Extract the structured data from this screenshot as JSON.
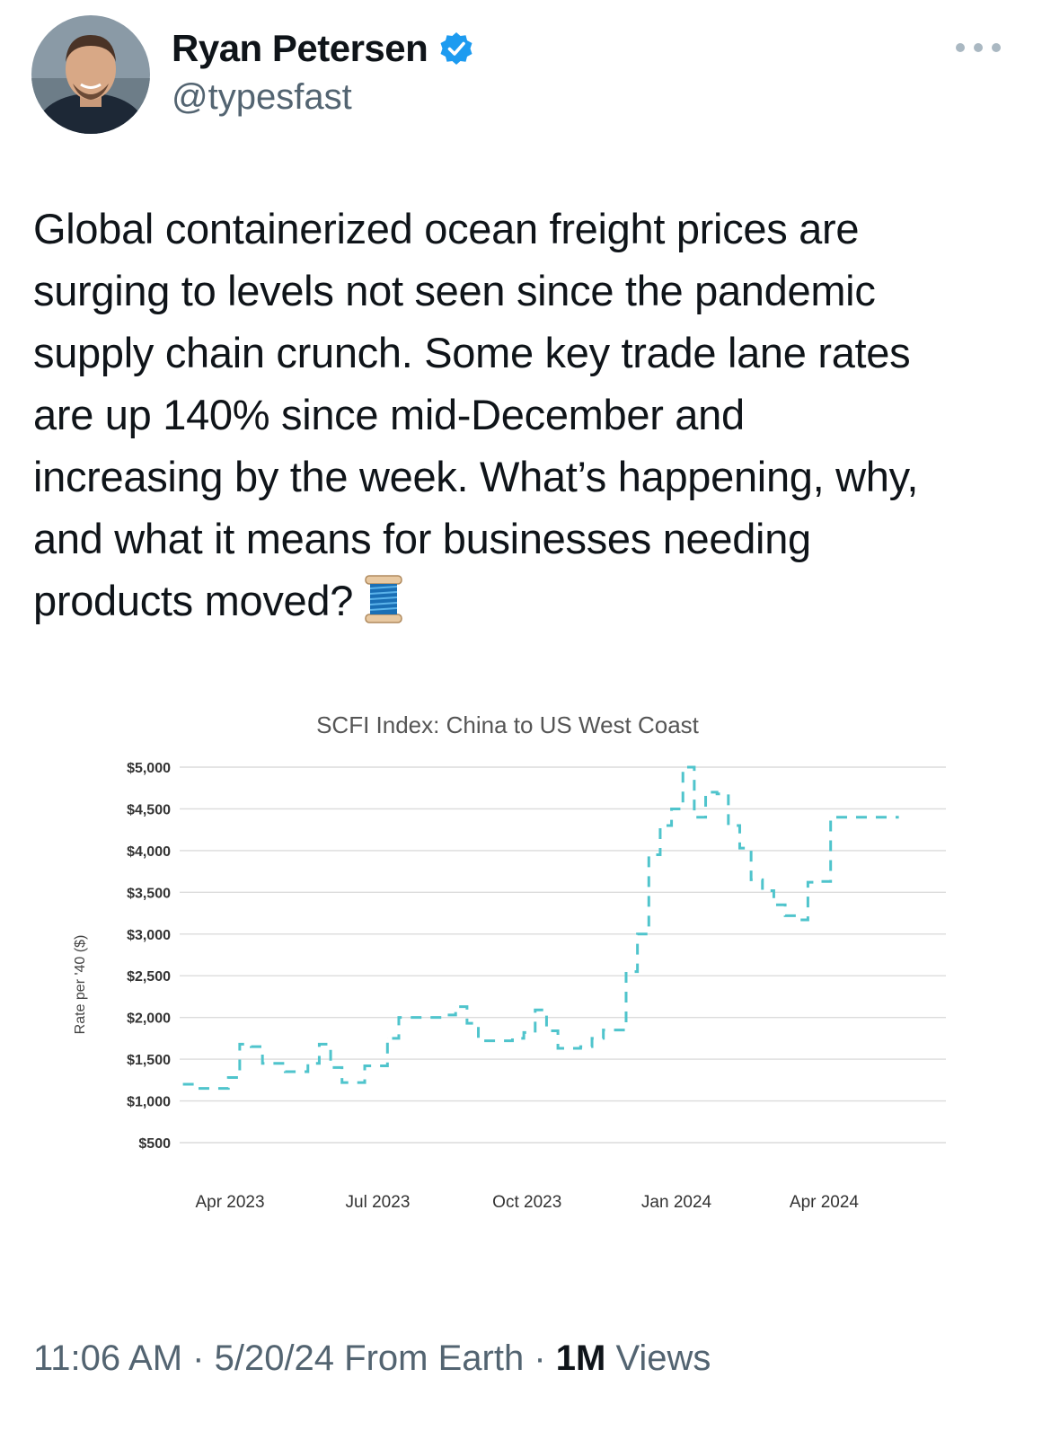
{
  "author": {
    "name": "Ryan Petersen",
    "handle": "@typesfast",
    "verified": true,
    "avatar_icon": "avatar-photo"
  },
  "tweet": {
    "lines": [
      "Global containerized ocean freight prices are",
      "surging to levels not seen since the pandemic",
      "supply chain crunch. Some key trade lane rates",
      "are up 140% since mid-December and",
      "increasing by the week. What’s happening, why,",
      "and what it means for businesses needing",
      "products moved?"
    ],
    "emoji": "spool-of-thread-icon"
  },
  "footer": {
    "time": "11:06 AM",
    "sep1": " · ",
    "date": "5/20/24",
    "source": " From Earth",
    "sep2": " · ",
    "views_count": "1M",
    "views_label": " Views"
  },
  "colors": {
    "series": "#4fc4cc",
    "grid": "#dcdcdc",
    "verified": "#1d9bf0",
    "secondary_text": "#536471"
  },
  "chart_data": {
    "type": "line",
    "title": "SCFI Index: China to US West Coast",
    "ylabel": "Rate per '40 ($)",
    "xlabel": "",
    "yticks": [
      500,
      1000,
      1500,
      2000,
      2500,
      3000,
      3500,
      4000,
      4500,
      5000
    ],
    "ytick_labels": [
      "$500",
      "$1,000",
      "$1,500",
      "$2,000",
      "$2,500",
      "$3,000",
      "$3,500",
      "$4,000",
      "$4,500",
      "$5,000"
    ],
    "ylim": [
      500,
      5000
    ],
    "xticks": [
      "2023-04-01",
      "2023-07-01",
      "2023-10-01",
      "2024-01-01",
      "2024-04-01"
    ],
    "xtick_labels": [
      "Apr 2023",
      "Jul 2023",
      "Oct 2023",
      "Jan 2024",
      "Apr 2024"
    ],
    "xlim": [
      "2023-03-01",
      "2024-06-15"
    ],
    "grid": true,
    "line_style": "dashed-step",
    "series": [
      {
        "x": [
          "2023-03-03",
          "2023-03-10",
          "2023-03-17",
          "2023-03-24",
          "2023-03-31",
          "2023-04-07",
          "2023-04-14",
          "2023-04-21",
          "2023-04-28",
          "2023-05-05",
          "2023-05-12",
          "2023-05-19",
          "2023-05-26",
          "2023-06-02",
          "2023-06-09",
          "2023-06-16",
          "2023-06-23",
          "2023-06-30",
          "2023-07-07",
          "2023-07-14",
          "2023-07-21",
          "2023-07-28",
          "2023-08-04",
          "2023-08-11",
          "2023-08-18",
          "2023-08-25",
          "2023-09-01",
          "2023-09-08",
          "2023-09-15",
          "2023-09-22",
          "2023-09-29",
          "2023-10-06",
          "2023-10-13",
          "2023-10-20",
          "2023-10-27",
          "2023-11-03",
          "2023-11-10",
          "2023-11-17",
          "2023-11-24",
          "2023-12-01",
          "2023-12-08",
          "2023-12-15",
          "2023-12-22",
          "2023-12-29",
          "2024-01-05",
          "2024-01-12",
          "2024-01-19",
          "2024-01-26",
          "2024-02-02",
          "2024-02-09",
          "2024-02-16",
          "2024-02-23",
          "2024-03-01",
          "2024-03-08",
          "2024-03-15",
          "2024-03-22",
          "2024-03-29",
          "2024-04-05",
          "2024-04-12",
          "2024-04-19",
          "2024-04-26",
          "2024-05-03",
          "2024-05-10",
          "2024-05-17"
        ],
        "values": [
          1200,
          1150,
          1150,
          1150,
          1280,
          1680,
          1650,
          1450,
          1450,
          1350,
          1350,
          1450,
          1680,
          1400,
          1220,
          1220,
          1420,
          1420,
          1750,
          2000,
          2000,
          2000,
          2000,
          2030,
          2130,
          1930,
          1720,
          1720,
          1720,
          1750,
          1820,
          2090,
          1840,
          1630,
          1630,
          1650,
          1750,
          1850,
          1850,
          2550,
          3000,
          3950,
          4300,
          4500,
          5000,
          4400,
          4700,
          4680,
          4300,
          4030,
          3650,
          3520,
          3350,
          3220,
          3170,
          3620,
          3630,
          4400,
          4400,
          4400,
          4400,
          4400,
          4400,
          4400
        ]
      }
    ]
  }
}
